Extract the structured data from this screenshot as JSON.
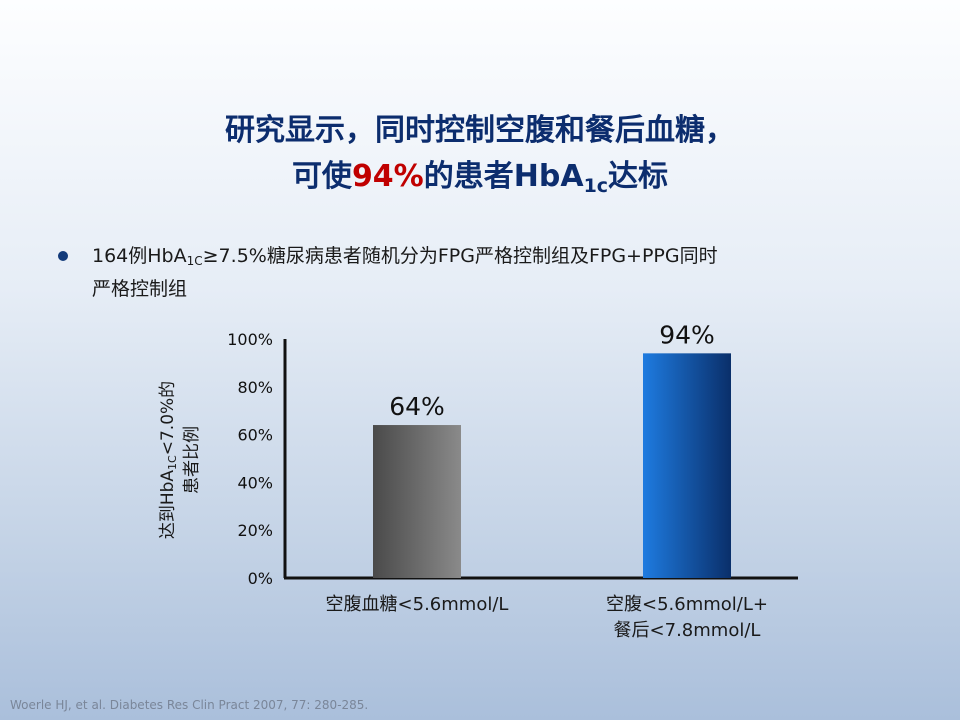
{
  "slide": {
    "title_line1": "研究显示，同时控制空腹和餐后血糖，",
    "title_line2_pre": "可使",
    "title_line2_highlight": "94%",
    "title_line2_mid": "的患者HbA",
    "title_line2_sub": "1c",
    "title_line2_post": "达标",
    "bullet_pre": "164例HbA",
    "bullet_sub": "1C",
    "bullet_post": "≥7.5%糖尿病患者随机分为FPG严格控制组及FPG+PPG同时",
    "bullet_line2": "严格控制组",
    "footer": "Woerle HJ, et al. Diabetes Res Clin Pract 2007, 77: 280-285.",
    "highlight_color": "#c00000",
    "title_color": "#0c2d6e"
  },
  "chart_data": {
    "type": "bar",
    "categories": [
      {
        "line1": "空腹血糖<5.6mmol/L",
        "line2": ""
      },
      {
        "line1": "空腹<5.6mmol/L+",
        "line2": "餐后<7.8mmol/L"
      }
    ],
    "values": [
      64,
      94
    ],
    "data_labels": [
      "64%",
      "94%"
    ],
    "bar_colors": [
      {
        "from": "#4a4a4a",
        "to": "#8a8a8a"
      },
      {
        "from": "#1e7be0",
        "to": "#0a2f6a"
      }
    ],
    "ylim": [
      0,
      100
    ],
    "yticks": [
      0,
      20,
      40,
      60,
      80,
      100
    ],
    "ytick_labels": [
      "0%",
      "20%",
      "40%",
      "60%",
      "80%",
      "100%"
    ],
    "ylabel_line1_pre": "达到HbA",
    "ylabel_line1_sub": "1C",
    "ylabel_line1_post": "<7.0%的",
    "ylabel_line2": "患者比例",
    "grid": false
  }
}
